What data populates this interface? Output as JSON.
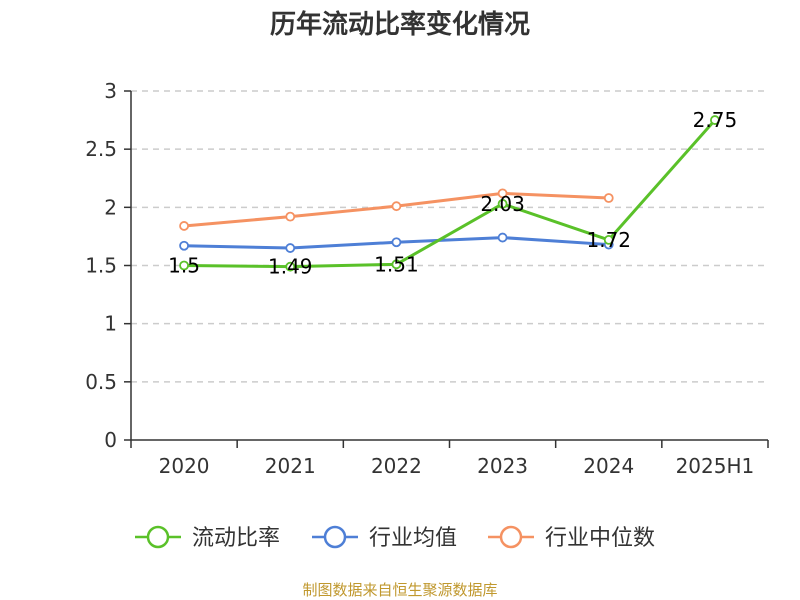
{
  "chart_data": {
    "type": "line",
    "title": "历年流动比率变化情况",
    "categories": [
      "2020",
      "2021",
      "2022",
      "2023",
      "2024",
      "2025H1"
    ],
    "ylim": [
      0,
      3
    ],
    "yticks": [
      "0",
      "0.5",
      "1",
      "1.5",
      "2",
      "2.5",
      "3"
    ],
    "grid": true,
    "legend_position": "bottom",
    "series": [
      {
        "name": "流动比率",
        "color": "#5ac129",
        "values": [
          1.5,
          1.49,
          1.51,
          2.03,
          1.72,
          2.75
        ],
        "labels": [
          "1.5",
          "1.49",
          "1.51",
          "2.03",
          "1.72",
          "2.75"
        ]
      },
      {
        "name": "行业均值",
        "color": "#4e7fd6",
        "values": [
          1.67,
          1.65,
          1.7,
          1.74,
          1.68,
          null
        ]
      },
      {
        "name": "行业中位数",
        "color": "#f59262",
        "values": [
          1.84,
          1.92,
          2.01,
          2.12,
          2.08,
          null
        ]
      }
    ]
  },
  "footer": {
    "source": "制图数据来自恒生聚源数据库"
  }
}
